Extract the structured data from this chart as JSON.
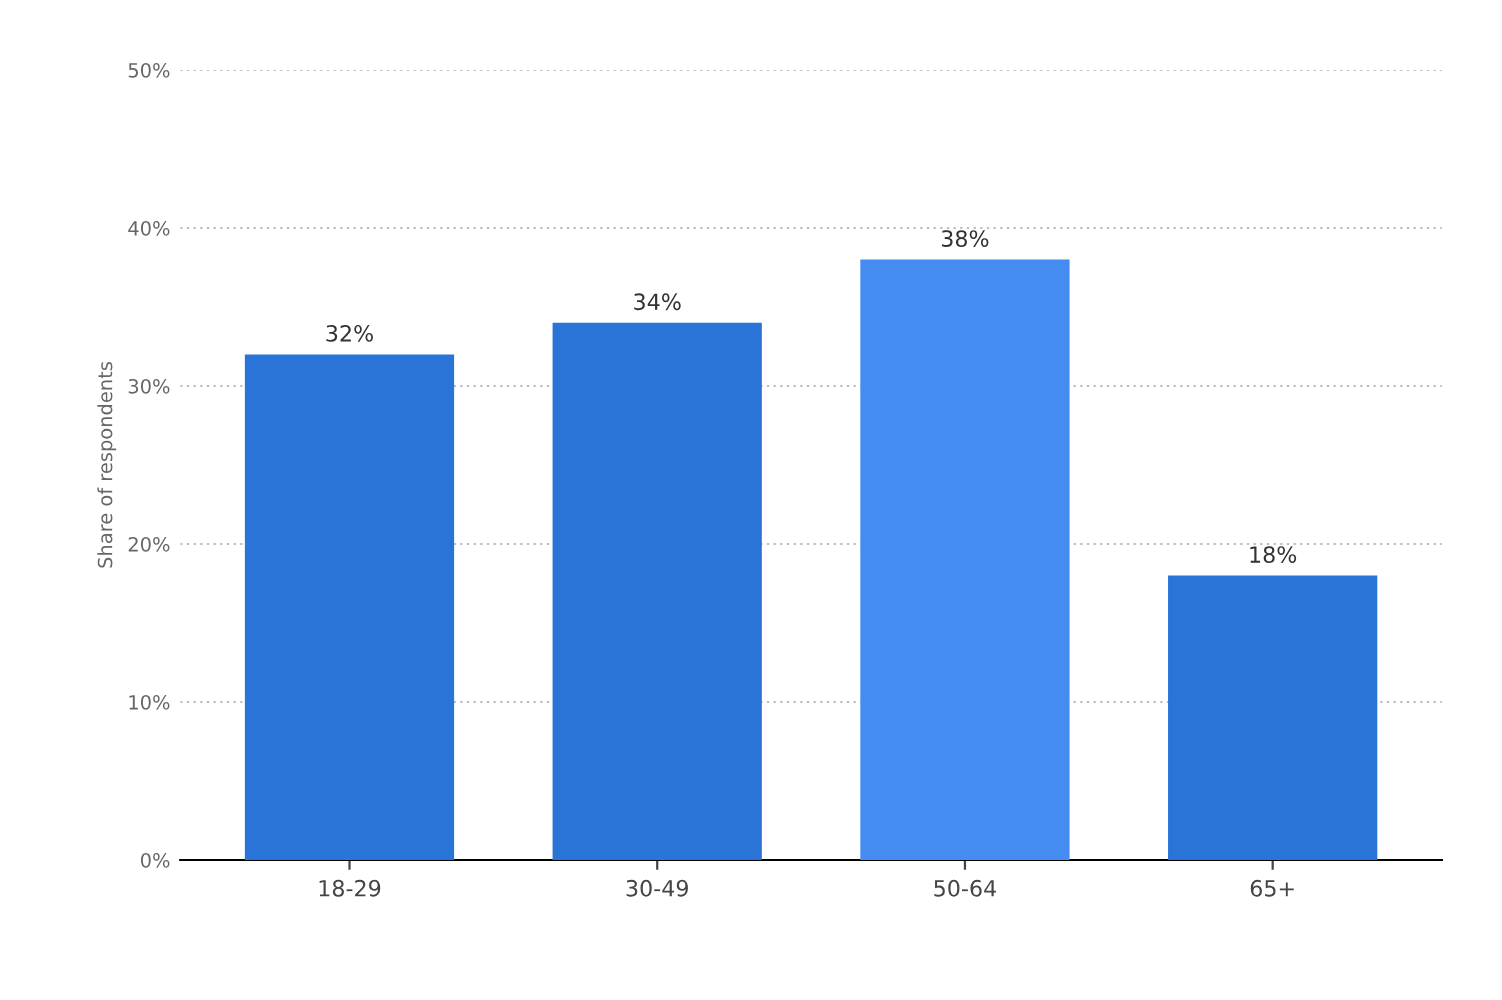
{
  "chart_data": {
    "type": "bar",
    "ylabel": "Share of respondents",
    "categories": [
      "18-29",
      "30-49",
      "50-64",
      "65+"
    ],
    "values": [
      32,
      34,
      38,
      18
    ],
    "colors": [
      "#2a74d8",
      "#2a74d8",
      "#448cf2",
      "#2a74d8"
    ],
    "value_labels": [
      "32%",
      "34%",
      "38%",
      "18%"
    ],
    "ylim": [
      0,
      50
    ],
    "yticks": [
      {
        "value": 0,
        "label": "0%"
      },
      {
        "value": 10,
        "label": "10%"
      },
      {
        "value": 20,
        "label": "20%"
      },
      {
        "value": 30,
        "label": "30%"
      },
      {
        "value": 40,
        "label": "40%"
      },
      {
        "value": 50,
        "label": "50%"
      }
    ],
    "grid": "y",
    "legend": false
  }
}
